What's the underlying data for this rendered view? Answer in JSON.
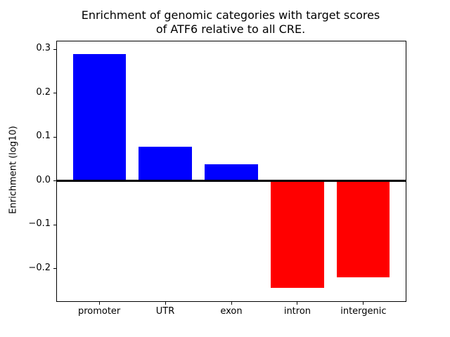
{
  "chart_data": {
    "type": "bar",
    "title": "Enrichment of genomic categories with target scores\nof ATF6 relative to all CRE.",
    "xlabel": "",
    "ylabel": "Enrichment (log10)",
    "categories": [
      "promoter",
      "UTR",
      "exon",
      "intron",
      "intergenic"
    ],
    "values": [
      0.29,
      0.078,
      0.038,
      -0.244,
      -0.22
    ],
    "ylim": [
      -0.274,
      0.318
    ],
    "yticks": [
      0.3,
      0.2,
      0.1,
      0.0,
      -0.1,
      -0.2
    ],
    "bar_width_fraction": 0.8,
    "positive_color": "#0000ff",
    "negative_color": "#ff0000",
    "zero_line": true,
    "zero_line_color": "#000000",
    "axes_background": "#ffffff",
    "spine_color": "#000000",
    "grid": false,
    "legend": false
  }
}
